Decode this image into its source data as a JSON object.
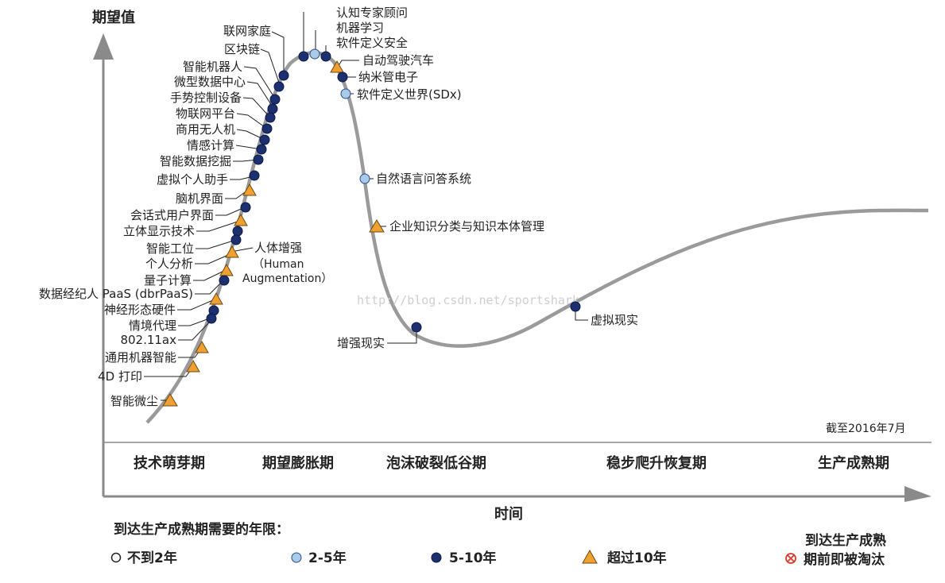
{
  "axes": {
    "y_title": "期望值",
    "x_title": "时间"
  },
  "as_of": "截至2016年7月",
  "watermark": "http://blog.csdn.net/sportshark",
  "phases": [
    "技术萌芽期",
    "期望膨胀期",
    "泡沫破裂低谷期",
    "稳步爬升恢复期",
    "生产成熟期"
  ],
  "legend": {
    "title": "到达生产成熟期需要的年限：",
    "items": [
      {
        "key": "lt2",
        "label": "不到2年",
        "symbol": "open-circle"
      },
      {
        "key": "2to5",
        "label": "2-5年",
        "symbol": "light-blue-circle"
      },
      {
        "key": "5to10",
        "label": "5-10年",
        "symbol": "dark-blue-circle"
      },
      {
        "key": "gt10",
        "label": "超过10年",
        "symbol": "orange-triangle"
      }
    ],
    "obsolete_line1": "到达生产成熟",
    "obsolete_line2": "期前即被淘汰",
    "obsolete_symbol": "crossed-circle-icon"
  },
  "colors": {
    "curve": "#9a9a9a",
    "dark_blue": "#1c2f6e",
    "light_blue": "#a9cbe8",
    "orange": "#f0a030",
    "obsolete": "#d9382b"
  },
  "technologies": [
    {
      "name": "认知专家顾问",
      "horizon": "2-5年"
    },
    {
      "name": "机器学习",
      "horizon": "2-5年"
    },
    {
      "name": "软件定义安全",
      "horizon": "5-10年"
    },
    {
      "name": "自动驾驶汽车",
      "horizon": "超过10年"
    },
    {
      "name": "纳米管电子",
      "horizon": "5-10年"
    },
    {
      "name": "软件定义世界（SDx）",
      "display": "软件定义世界(SDx)",
      "horizon": "2-5年"
    },
    {
      "name": "联网家庭",
      "horizon": "5-10年"
    },
    {
      "name": "区块链",
      "horizon": "5-10年"
    },
    {
      "name": "智能机器人",
      "horizon": "5-10年"
    },
    {
      "name": "微型数据中心",
      "horizon": "5-10年"
    },
    {
      "name": "手势控制设备",
      "horizon": "5-10年"
    },
    {
      "name": "物联网平台",
      "horizon": "5-10年"
    },
    {
      "name": "商用无人机",
      "horizon": "5-10年"
    },
    {
      "name": "情感计算",
      "horizon": "5-10年"
    },
    {
      "name": "智能数据挖掘",
      "horizon": "5-10年"
    },
    {
      "name": "虚拟个人助手",
      "horizon": "5-10年"
    },
    {
      "name": "脑机界面",
      "horizon": "超过10年"
    },
    {
      "name": "会话式用户界面",
      "horizon": "5-10年"
    },
    {
      "name": "立体显示技术",
      "horizon": "超过10年"
    },
    {
      "name": "智能工位",
      "horizon": "5-10年"
    },
    {
      "name": "个人分析",
      "horizon": "5-10年"
    },
    {
      "name": "人体增强",
      "horizon": "超过10年"
    },
    {
      "name": "量子计算",
      "horizon": "超过10年"
    },
    {
      "name": "数据经纪人 PaaS (dbrPaaS)",
      "horizon": "5-10年"
    },
    {
      "name": "神经形态硬件",
      "horizon": "超过10年"
    },
    {
      "name": "情境代理",
      "horizon": "5-10年"
    },
    {
      "name": "802.11ax",
      "horizon": "5-10年"
    },
    {
      "name": "通用机器智能",
      "horizon": "超过10年"
    },
    {
      "name": "4D 打印",
      "horizon": "超过10年"
    },
    {
      "name": "智能微尘",
      "horizon": "超过10年"
    },
    {
      "name": "自然语言问答系统",
      "horizon": "2-5年"
    },
    {
      "name": "企业知识分类与知识本体管理",
      "horizon": "超过10年"
    },
    {
      "name": "增强现实",
      "horizon": "5-10年"
    },
    {
      "name": "虚拟现实",
      "horizon": "5-10年"
    }
  ],
  "extra_labels": {
    "human_aug_en1": "（Human",
    "human_aug_en2": "Augmentation）"
  }
}
